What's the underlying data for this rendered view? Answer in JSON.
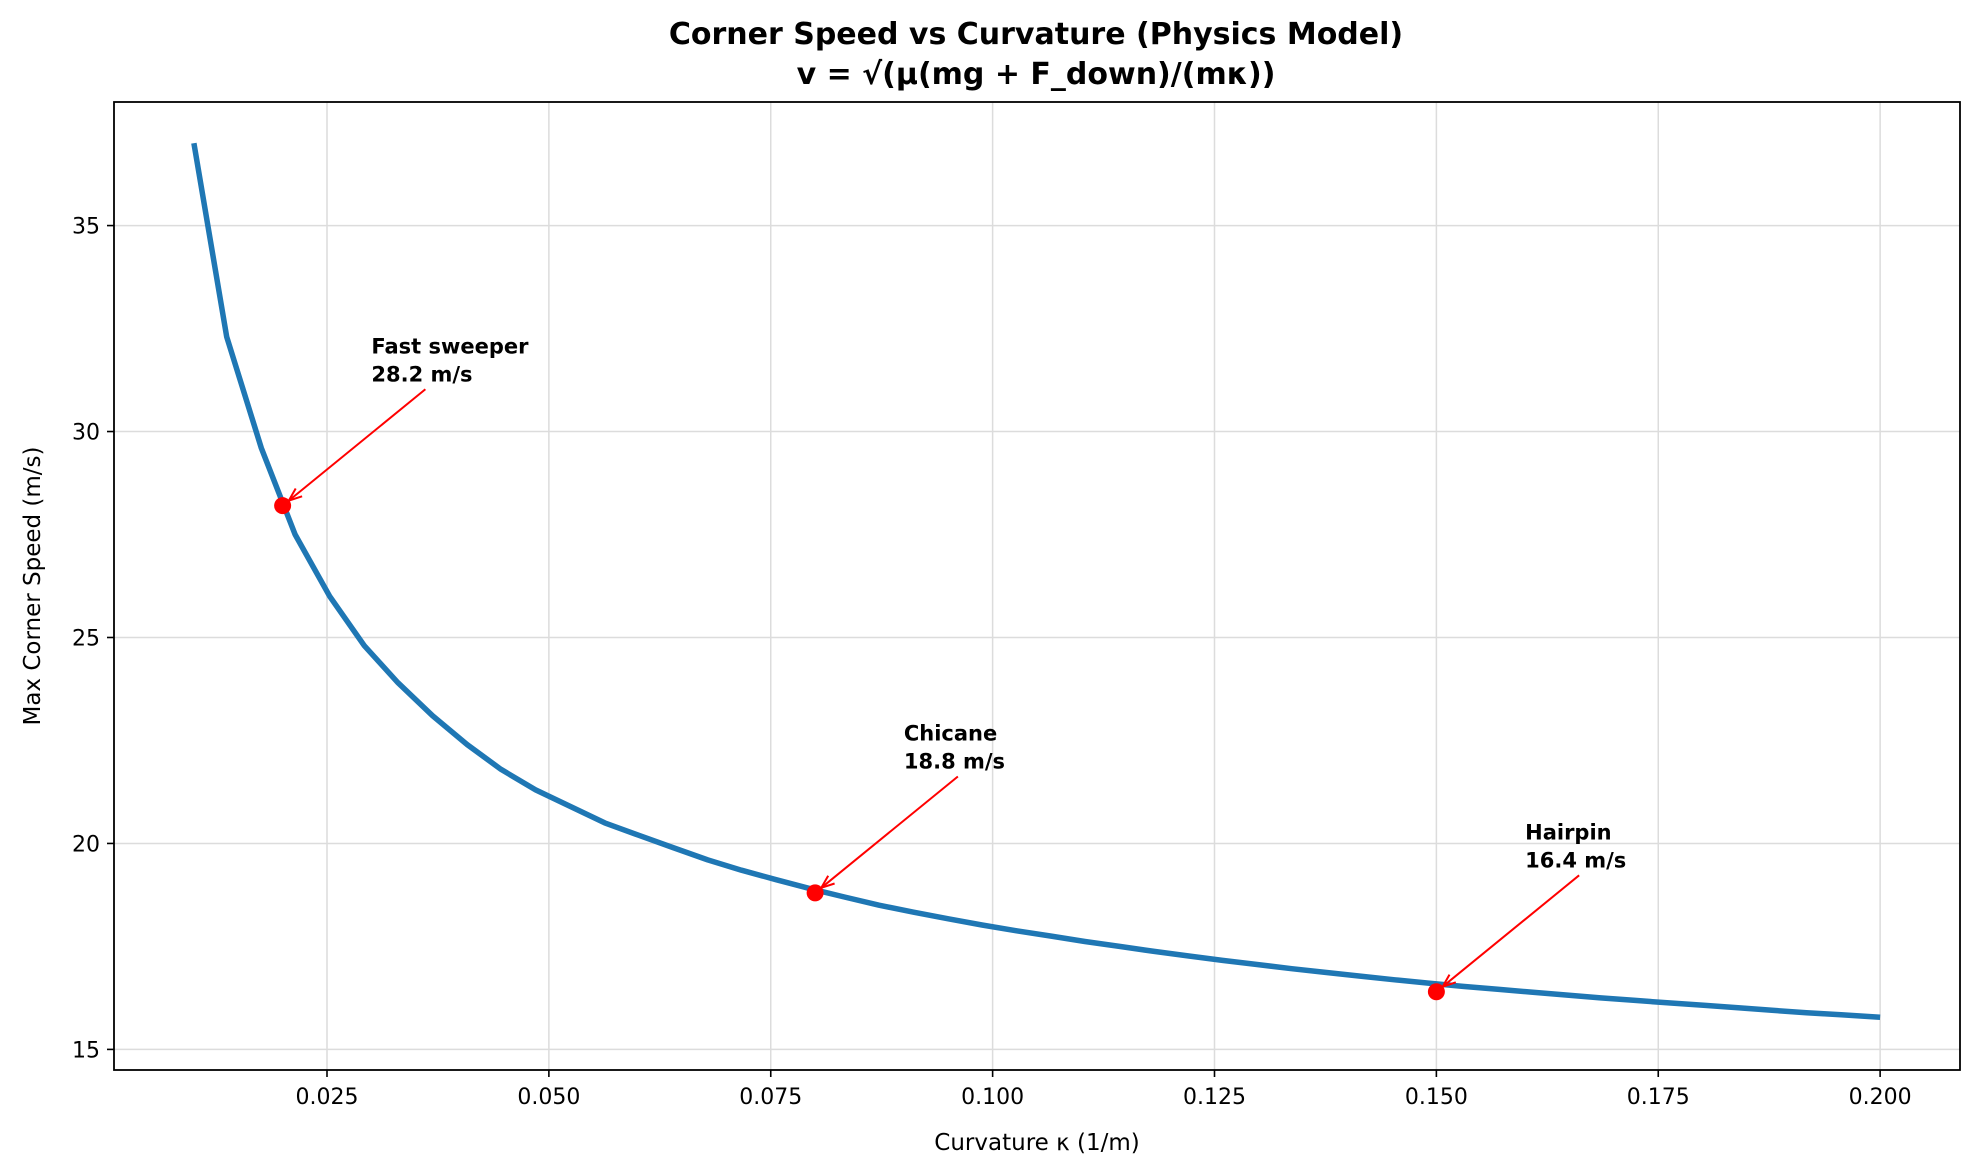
{
  "chart_data": {
    "type": "line",
    "title": "Corner Speed vs Curvature (Physics Model)",
    "subtitle": "v = √(μ(mg + F_down)/(mκ))",
    "xlabel": "Curvature κ (1/m)",
    "ylabel": "Max Corner Speed (m/s)",
    "xlim": [
      0.001,
      0.209
    ],
    "ylim": [
      14.5,
      38.0
    ],
    "xticks": [
      0.025,
      0.05,
      0.075,
      0.1,
      0.125,
      0.15,
      0.175,
      0.2
    ],
    "xtick_labels": [
      "0.025",
      "0.050",
      "0.075",
      "0.100",
      "0.125",
      "0.150",
      "0.175",
      "0.200"
    ],
    "yticks": [
      15,
      20,
      25,
      30,
      35
    ],
    "ytick_labels": [
      "15",
      "20",
      "25",
      "30",
      "35"
    ],
    "grid": true,
    "series": [
      {
        "color": "#1f77b4",
        "x": [
          0.01,
          0.0137,
          0.0176,
          0.0214,
          0.0253,
          0.0292,
          0.033,
          0.0369,
          0.0408,
          0.0446,
          0.0485,
          0.0524,
          0.0563,
          0.0601,
          0.064,
          0.0679,
          0.0717,
          0.0756,
          0.0795,
          0.0833,
          0.0872,
          0.0911,
          0.095,
          0.0988,
          0.1027,
          0.1066,
          0.1104,
          0.1143,
          0.1182,
          0.122,
          0.1259,
          0.1298,
          0.1337,
          0.1375,
          0.1414,
          0.1453,
          0.1491,
          0.153,
          0.1569,
          0.1607,
          0.1646,
          0.1685,
          0.1724,
          0.1762,
          0.1801,
          0.184,
          0.1878,
          0.1917,
          0.1956,
          0.2
        ],
        "y": [
          37.0,
          32.3,
          29.6,
          27.5,
          26.0,
          24.8,
          23.9,
          23.1,
          22.4,
          21.8,
          21.3,
          20.9,
          20.5,
          20.2,
          19.9,
          19.6,
          19.35,
          19.12,
          18.9,
          18.7,
          18.5,
          18.33,
          18.17,
          18.02,
          17.88,
          17.75,
          17.62,
          17.5,
          17.38,
          17.27,
          17.16,
          17.06,
          16.96,
          16.87,
          16.78,
          16.69,
          16.61,
          16.53,
          16.46,
          16.39,
          16.32,
          16.25,
          16.19,
          16.13,
          16.07,
          16.01,
          15.95,
          15.89,
          15.84,
          15.78
        ]
      }
    ],
    "highlight_color": "#ff0000",
    "points": [
      {
        "x": 0.02,
        "y": 28.2,
        "label_lines": [
          "Fast sweeper",
          "28.2 m/s"
        ],
        "text_x": 0.03,
        "text_y": 31.9
      },
      {
        "x": 0.08,
        "y": 18.8,
        "label_lines": [
          "Chicane",
          "18.8 m/s"
        ],
        "text_x": 0.09,
        "text_y": 22.5
      },
      {
        "x": 0.15,
        "y": 16.4,
        "label_lines": [
          "Hairpin",
          "16.4 m/s"
        ],
        "text_x": 0.16,
        "text_y": 20.1
      }
    ]
  }
}
